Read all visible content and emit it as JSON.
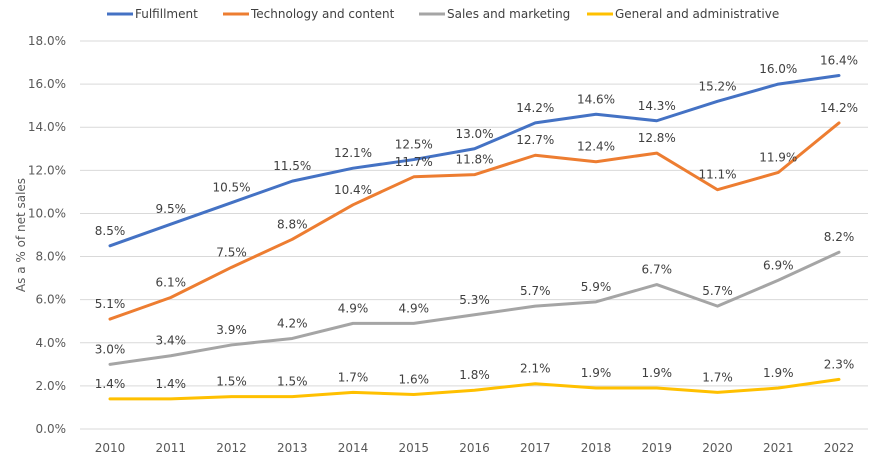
{
  "chart_data": {
    "type": "line",
    "title": "",
    "xlabel": "",
    "ylabel": "As a % of net sales",
    "ylim": [
      0,
      18
    ],
    "ytick_step": 2,
    "ytick_labels": [
      "0.0%",
      "2.0%",
      "4.0%",
      "6.0%",
      "8.0%",
      "10.0%",
      "12.0%",
      "14.0%",
      "16.0%",
      "18.0%"
    ],
    "grid": true,
    "legend_position": "top",
    "categories": [
      "2010",
      "2011",
      "2012",
      "2013",
      "2014",
      "2015",
      "2016",
      "2017",
      "2018",
      "2019",
      "2020",
      "2021",
      "2022"
    ],
    "series": [
      {
        "name": "Fulfillment",
        "color": "#4472c4",
        "values": [
          8.5,
          9.5,
          10.5,
          11.5,
          12.1,
          12.5,
          13.0,
          14.2,
          14.6,
          14.3,
          15.2,
          16.0,
          16.4
        ],
        "labels": [
          "8.5%",
          "9.5%",
          "10.5%",
          "11.5%",
          "12.1%",
          "12.5%",
          "13.0%",
          "14.2%",
          "14.6%",
          "14.3%",
          "15.2%",
          "16.0%",
          "16.4%"
        ]
      },
      {
        "name": "Technology and content",
        "color": "#ed7d31",
        "values": [
          5.1,
          6.1,
          7.5,
          8.8,
          10.4,
          11.7,
          11.8,
          12.7,
          12.4,
          12.8,
          11.1,
          11.9,
          14.2
        ],
        "labels": [
          "5.1%",
          "6.1%",
          "7.5%",
          "8.8%",
          "10.4%",
          "11.7%",
          "11.8%",
          "12.7%",
          "12.4%",
          "12.8%",
          "11.1%",
          "11.9%",
          "14.2%"
        ]
      },
      {
        "name": "Sales and marketing",
        "color": "#a5a5a5",
        "values": [
          3.0,
          3.4,
          3.9,
          4.2,
          4.9,
          4.9,
          5.3,
          5.7,
          5.9,
          6.7,
          5.7,
          6.9,
          8.2
        ],
        "labels": [
          "3.0%",
          "3.4%",
          "3.9%",
          "4.2%",
          "4.9%",
          "4.9%",
          "5.3%",
          "5.7%",
          "5.9%",
          "6.7%",
          "5.7%",
          "6.9%",
          "8.2%"
        ]
      },
      {
        "name": "General and administrative",
        "color": "#ffc000",
        "values": [
          1.4,
          1.4,
          1.5,
          1.5,
          1.7,
          1.6,
          1.8,
          2.1,
          1.9,
          1.9,
          1.7,
          1.9,
          2.3
        ],
        "labels": [
          "1.4%",
          "1.4%",
          "1.5%",
          "1.5%",
          "1.7%",
          "1.6%",
          "1.8%",
          "2.1%",
          "1.9%",
          "1.9%",
          "1.7%",
          "1.9%",
          "2.3%"
        ]
      }
    ]
  }
}
